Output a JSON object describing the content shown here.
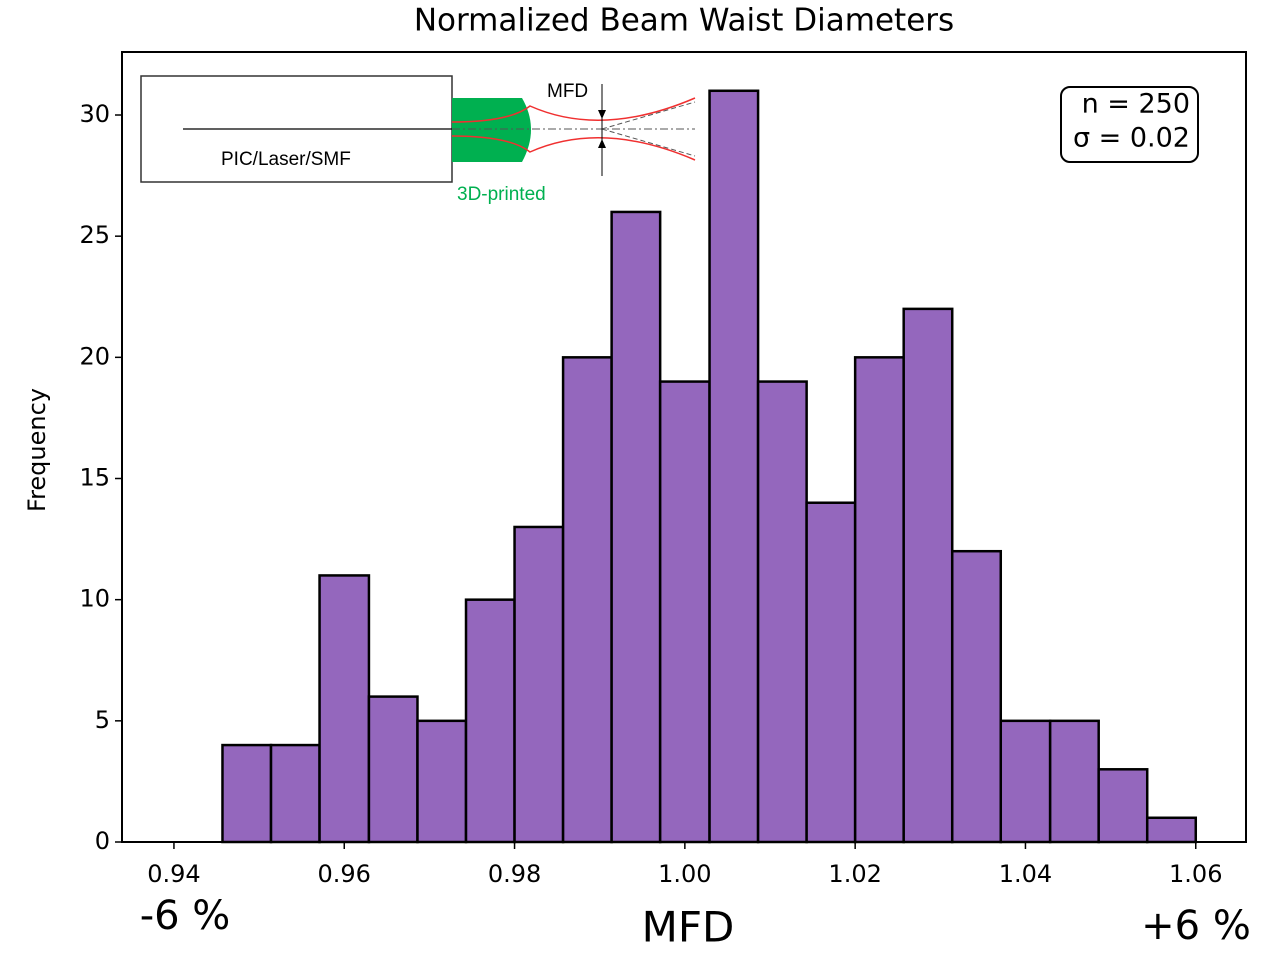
{
  "chart_data": {
    "type": "histogram",
    "title": "Normalized Beam Waist Diameters",
    "xlabel": "MFD",
    "ylabel": "Frequency",
    "bins": [
      0.94,
      0.9457,
      0.9514,
      0.9571,
      0.9629,
      0.9686,
      0.9743,
      0.98,
      0.9857,
      0.9914,
      0.9971,
      1.0029,
      1.0086,
      1.0143,
      1.02,
      1.0257,
      1.0314,
      1.0371,
      1.0429,
      1.0486,
      1.0543,
      1.06
    ],
    "values": [
      0,
      4,
      4,
      11,
      6,
      5,
      10,
      13,
      20,
      26,
      19,
      31,
      19,
      14,
      20,
      22,
      12,
      5,
      5,
      3,
      1
    ],
    "color": "#9467bd",
    "xlim": [
      0.9339,
      1.0659
    ],
    "xticks": [
      0.94,
      0.96,
      0.98,
      {
        "value": 1,
        "label": "1.00"
      },
      1.02,
      1.04,
      1.06
    ],
    "ylim": [
      0,
      32.6
    ],
    "yticks": [
      0,
      5,
      10,
      15,
      20,
      25,
      30
    ],
    "stats_box": [
      "n = 250",
      "σ = 0.02"
    ],
    "range_labels": [
      "-6 %",
      "+6 %"
    ],
    "inset_labels": {
      "source": "PIC/Laser/SMF",
      "lens": "3D-printed",
      "waist": "MFD"
    }
  }
}
